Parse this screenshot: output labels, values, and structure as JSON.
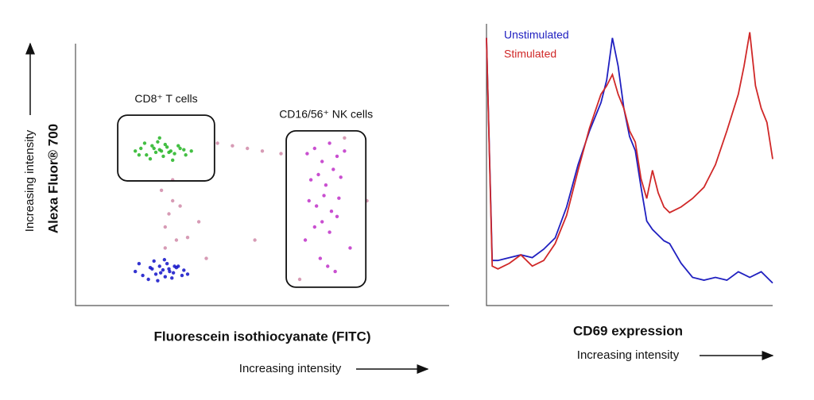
{
  "chart_data": [
    {
      "type": "scatter",
      "xlabel": "Fluorescein isothiocyanate (FITC)",
      "ylabel": "Alexa Fluor® 700",
      "x_note": "Increasing intensity",
      "y_note": "Increasing intensity",
      "xlim": [
        0,
        1000
      ],
      "ylim": [
        0,
        1000
      ],
      "series": [
        {
          "color": "#1010c8",
          "x": [
            160,
            180,
            200,
            215,
            225,
            234,
            240,
            250,
            262,
            275,
            290,
            300,
            170,
            195,
            210,
            228,
            245,
            258,
            270,
            285,
            205,
            220,
            238,
            252,
            265
          ],
          "y": [
            130,
            115,
            145,
            120,
            150,
            136,
            110,
            140,
            125,
            150,
            135,
            120,
            160,
            100,
            170,
            125,
            160,
            105,
            145,
            115,
            140,
            95,
            175,
            130,
            150
          ]
        },
        {
          "color": "#22b422",
          "x": [
            160,
            175,
            190,
            205,
            215,
            225,
            235,
            245,
            255,
            265,
            280,
            295,
            310,
            185,
            200,
            220,
            240,
            260,
            275,
            230,
            210,
            250,
            170,
            290,
            225
          ],
          "y": [
            590,
            600,
            575,
            610,
            585,
            595,
            570,
            605,
            590,
            580,
            600,
            575,
            590,
            620,
            560,
            625,
            615,
            555,
            610,
            590,
            600,
            585,
            575,
            595,
            640
          ]
        },
        {
          "color": "#c030c8",
          "x": [
            620,
            640,
            660,
            680,
            700,
            720,
            630,
            650,
            670,
            690,
            710,
            625,
            645,
            665,
            685,
            705,
            640,
            660,
            680,
            700,
            615,
            735,
            655,
            675,
            695
          ],
          "y": [
            580,
            600,
            550,
            620,
            570,
            590,
            480,
            500,
            460,
            520,
            490,
            400,
            380,
            420,
            360,
            410,
            300,
            320,
            280,
            340,
            250,
            220,
            180,
            150,
            130
          ]
        },
        {
          "color": "#d08aa8",
          "x": [
            240,
            250,
            260,
            270,
            380,
            420,
            460,
            500,
            300,
            330,
            550,
            240,
            260,
            600,
            720,
            780,
            350,
            480,
            230,
            280
          ],
          "y": [
            300,
            350,
            400,
            250,
            620,
            610,
            600,
            590,
            260,
            320,
            580,
            220,
            480,
            100,
            640,
            400,
            180,
            250,
            440,
            380
          ]
        }
      ],
      "gates": [
        {
          "label": "CD8⁺ T cells",
          "x": [
            113,
            372
          ],
          "y": [
            476,
            727
          ]
        },
        {
          "label": "CD16/56⁺ NK cells",
          "x": [
            564,
            777
          ],
          "y": [
            70,
            667
          ]
        }
      ]
    },
    {
      "type": "line",
      "xlabel": "CD69 expression",
      "x_note": "Increasing intensity",
      "xlim": [
        0,
        100
      ],
      "ylim": [
        0,
        100
      ],
      "x": [
        0,
        2,
        4,
        8,
        12,
        16,
        20,
        24,
        28,
        32,
        36,
        40,
        42,
        44,
        46,
        48,
        50,
        52,
        54,
        56,
        58,
        60,
        62,
        64,
        68,
        72,
        76,
        80,
        84,
        88,
        90,
        92,
        94,
        96,
        98,
        100
      ],
      "series": [
        {
          "name": "Unstimulated",
          "color": "#2020c0",
          "values": [
            95,
            16,
            16,
            17,
            18,
            17,
            20,
            24,
            35,
            50,
            62,
            72,
            80,
            95,
            85,
            70,
            60,
            55,
            42,
            30,
            27,
            25,
            23,
            22,
            15,
            10,
            9,
            10,
            9,
            12,
            11,
            10,
            11,
            12,
            10,
            8
          ]
        },
        {
          "name": "Stimulated",
          "color": "#d02828",
          "values": [
            95,
            14,
            13,
            15,
            18,
            14,
            16,
            22,
            32,
            48,
            63,
            75,
            78,
            82,
            75,
            70,
            62,
            58,
            45,
            38,
            48,
            40,
            35,
            33,
            35,
            38,
            42,
            50,
            62,
            75,
            85,
            97,
            78,
            70,
            65,
            52
          ]
        }
      ]
    }
  ]
}
